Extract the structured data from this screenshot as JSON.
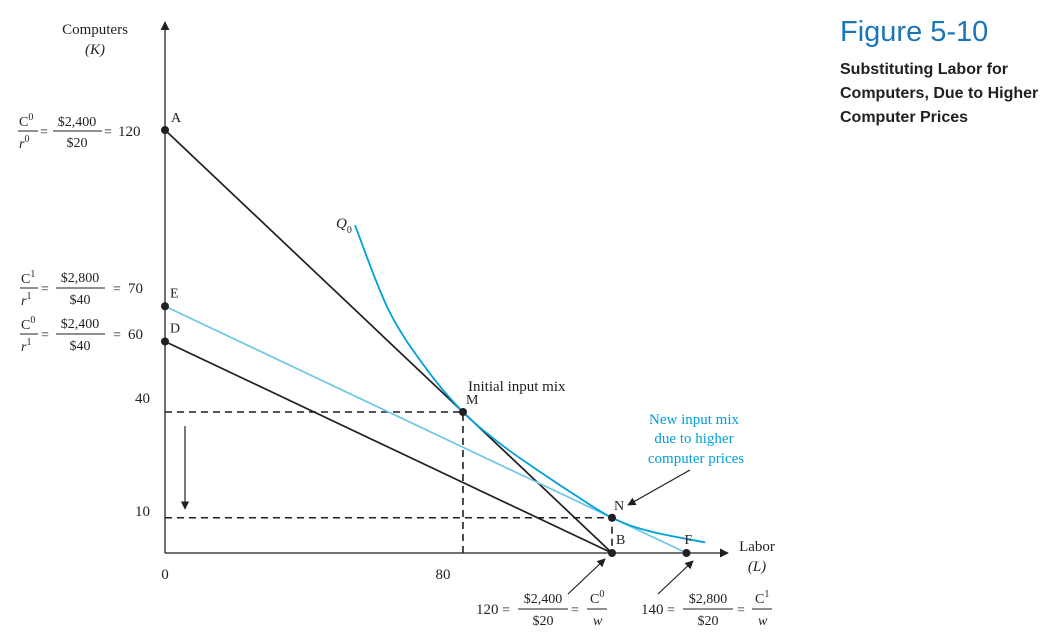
{
  "figure": {
    "number": "Figure 5-10",
    "subtitle": "Substituting Labor for Computers, Due to Higher Computer Prices"
  },
  "axes": {
    "y_label": "Computers",
    "y_symbol": "(K)",
    "x_label": "Labor",
    "x_symbol": "(L)",
    "origin_label": "0"
  },
  "ticks": {
    "y": [
      {
        "value": 120,
        "label": "120"
      },
      {
        "value": 70,
        "label": "70"
      },
      {
        "value": 60,
        "label": "60"
      },
      {
        "value": 40,
        "label": "40"
      },
      {
        "value": 10,
        "label": "10"
      }
    ],
    "x": [
      {
        "value": 80,
        "label": "80"
      },
      {
        "value": 120,
        "label": "120"
      },
      {
        "value": 140,
        "label": "140"
      }
    ]
  },
  "y_formulas": [
    {
      "id": "a",
      "cost": "C",
      "cost_sup": "0",
      "price": "r",
      "price_sup": "0",
      "num": "$2,400",
      "den": "$20",
      "equals": "=",
      "result": "120"
    },
    {
      "id": "e",
      "cost": "C",
      "cost_sup": "1",
      "price": "r",
      "price_sup": "1",
      "num": "$2,800",
      "den": "$40",
      "equals": "=",
      "result": "70"
    },
    {
      "id": "d",
      "cost": "C",
      "cost_sup": "0",
      "price": "r",
      "price_sup": "1",
      "num": "$2,400",
      "den": "$40",
      "equals": "=",
      "result": "60"
    }
  ],
  "x_formulas": [
    {
      "id": "b",
      "result": "120",
      "num": "$2,400",
      "den": "$20",
      "cost": "C",
      "cost_sup": "0",
      "price": "w",
      "equals": "="
    },
    {
      "id": "f",
      "result": "140",
      "num": "$2,800",
      "den": "$20",
      "cost": "C",
      "cost_sup": "1",
      "price": "w",
      "equals": "="
    }
  ],
  "chart_data": {
    "type": "line",
    "x_range": [
      0,
      145
    ],
    "y_range": [
      0,
      135
    ],
    "points": [
      {
        "id": "A",
        "label": "A",
        "x": 0,
        "y": 120
      },
      {
        "id": "E",
        "label": "E",
        "x": 0,
        "y": 70
      },
      {
        "id": "D",
        "label": "D",
        "x": 0,
        "y": 60
      },
      {
        "id": "M",
        "label": "M",
        "x": 80,
        "y": 40
      },
      {
        "id": "N",
        "label": "N",
        "x": 120,
        "y": 10
      },
      {
        "id": "B",
        "label": "B",
        "x": 120,
        "y": 0
      },
      {
        "id": "F",
        "label": "F",
        "x": 140,
        "y": 0
      }
    ],
    "series": [
      {
        "id": "AB",
        "color": "#231f20",
        "points": [
          [
            0,
            120
          ],
          [
            120,
            0
          ]
        ]
      },
      {
        "id": "DB",
        "color": "#231f20",
        "points": [
          [
            0,
            60
          ],
          [
            120,
            0
          ]
        ]
      },
      {
        "id": "EF",
        "color": "#6dc6e9",
        "points": [
          [
            0,
            70
          ],
          [
            140,
            0
          ]
        ]
      },
      {
        "id": "Q0",
        "name": "Q",
        "name_sub": "0",
        "color": "#00a0dc",
        "points": [
          [
            51,
            93
          ],
          [
            60,
            69
          ],
          [
            70,
            52.5
          ],
          [
            80,
            40
          ],
          [
            90,
            31
          ],
          [
            100,
            23.5
          ],
          [
            110,
            16.5
          ],
          [
            120,
            10
          ],
          [
            130,
            6.2
          ],
          [
            145,
            3
          ]
        ]
      }
    ],
    "guides": [
      {
        "points": [
          [
            0,
            40
          ],
          [
            80,
            40
          ],
          [
            80,
            0
          ]
        ]
      },
      {
        "points": [
          [
            0,
            10
          ],
          [
            120,
            10
          ],
          [
            120,
            0
          ]
        ]
      }
    ],
    "annotations": [
      {
        "id": "initial",
        "text": "Initial input mix"
      },
      {
        "id": "new",
        "lines": [
          "New input mix",
          "due to higher",
          "computer prices"
        ]
      }
    ],
    "colors": {
      "black_line": "#231f20",
      "light_blue": "#6dc6e9",
      "curve_blue": "#00a0dc",
      "text_blue": "#00a0dc",
      "title_blue": "#1a75bb"
    }
  }
}
